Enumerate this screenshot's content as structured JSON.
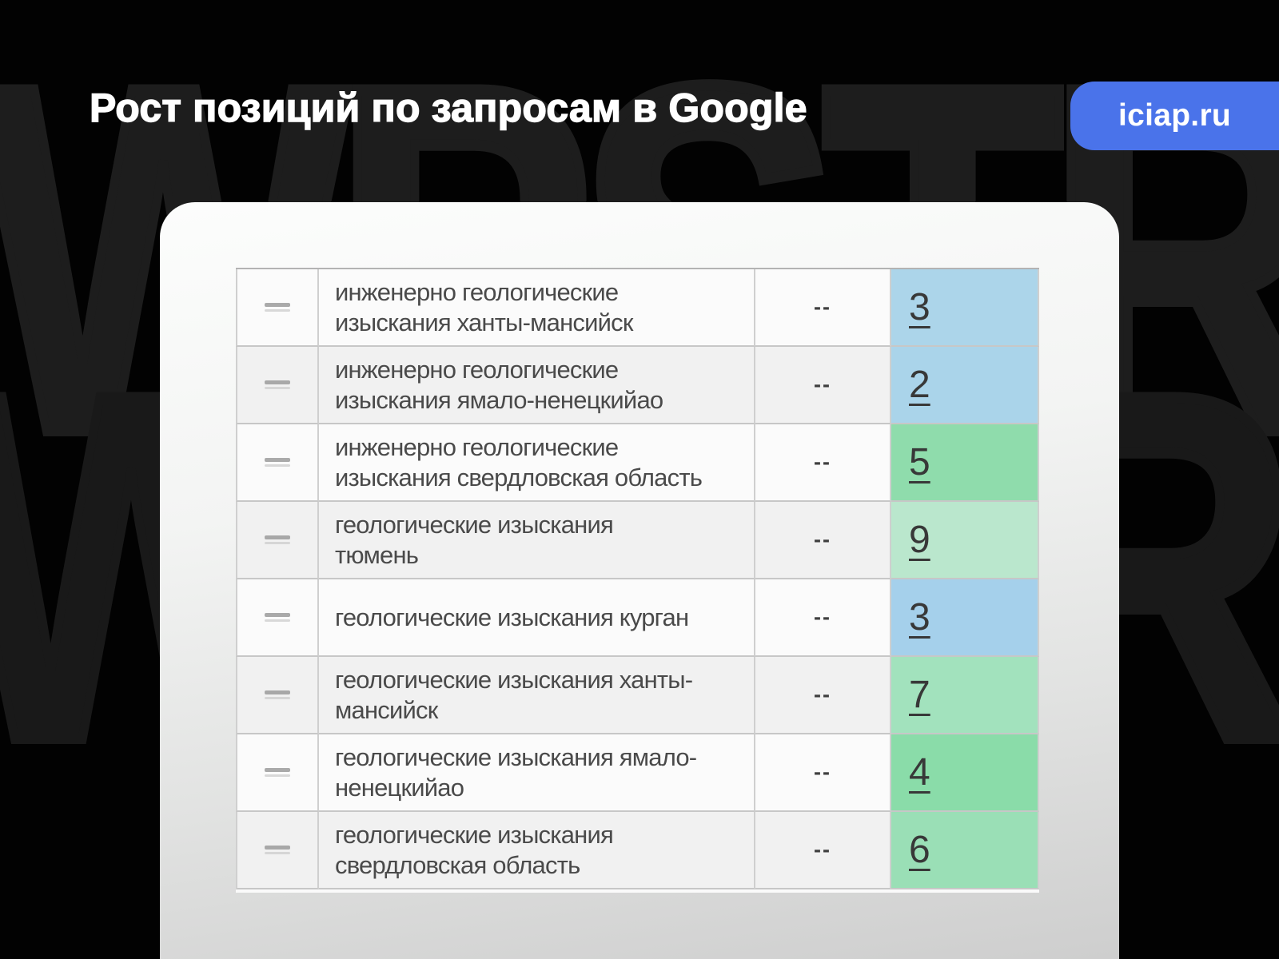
{
  "header": {
    "title": "Рост позиций по запросам в Google",
    "badge": "iciap.ru"
  },
  "watermark": {
    "text": "WPSTR"
  },
  "colors": {
    "background": "#020202",
    "watermark": "#1d1d1d",
    "badge_blue": "#4a73ea",
    "position_blue": "#acd5ea",
    "position_green": "#8fdcac",
    "table_border": "#c7c7c7",
    "query_text": "#4a4a4a"
  },
  "table": {
    "rows": [
      {
        "query": "инженерно геологические\nизыскания ханты-мансийск",
        "change": "--",
        "position": "3",
        "cell_color": "#acd5ea"
      },
      {
        "query": "инженерно геологические\nизыскания ямало-ненецкийао",
        "change": "--",
        "position": "2",
        "cell_color": "#aad4ea"
      },
      {
        "query": "инженерно геологические\nизыскания свердловская область",
        "change": "--",
        "position": "5",
        "cell_color": "#8fdcac"
      },
      {
        "query": "геологические изыскания\nтюмень",
        "change": "--",
        "position": "9",
        "cell_color": "#bae7cd"
      },
      {
        "query": "геологические изыскания курган",
        "change": "--",
        "position": "3",
        "cell_color": "#a5d0eb"
      },
      {
        "query": "геологические изыскания ханты-\nмансийск",
        "change": "--",
        "position": "7",
        "cell_color": "#a2e2bd"
      },
      {
        "query": "геологические изыскания ямало-\nненецкийао",
        "change": "--",
        "position": "4",
        "cell_color": "#8adca9"
      },
      {
        "query": "геологические изыскания\nсвердловская область",
        "change": "--",
        "position": "6",
        "cell_color": "#9adfb6"
      }
    ]
  }
}
